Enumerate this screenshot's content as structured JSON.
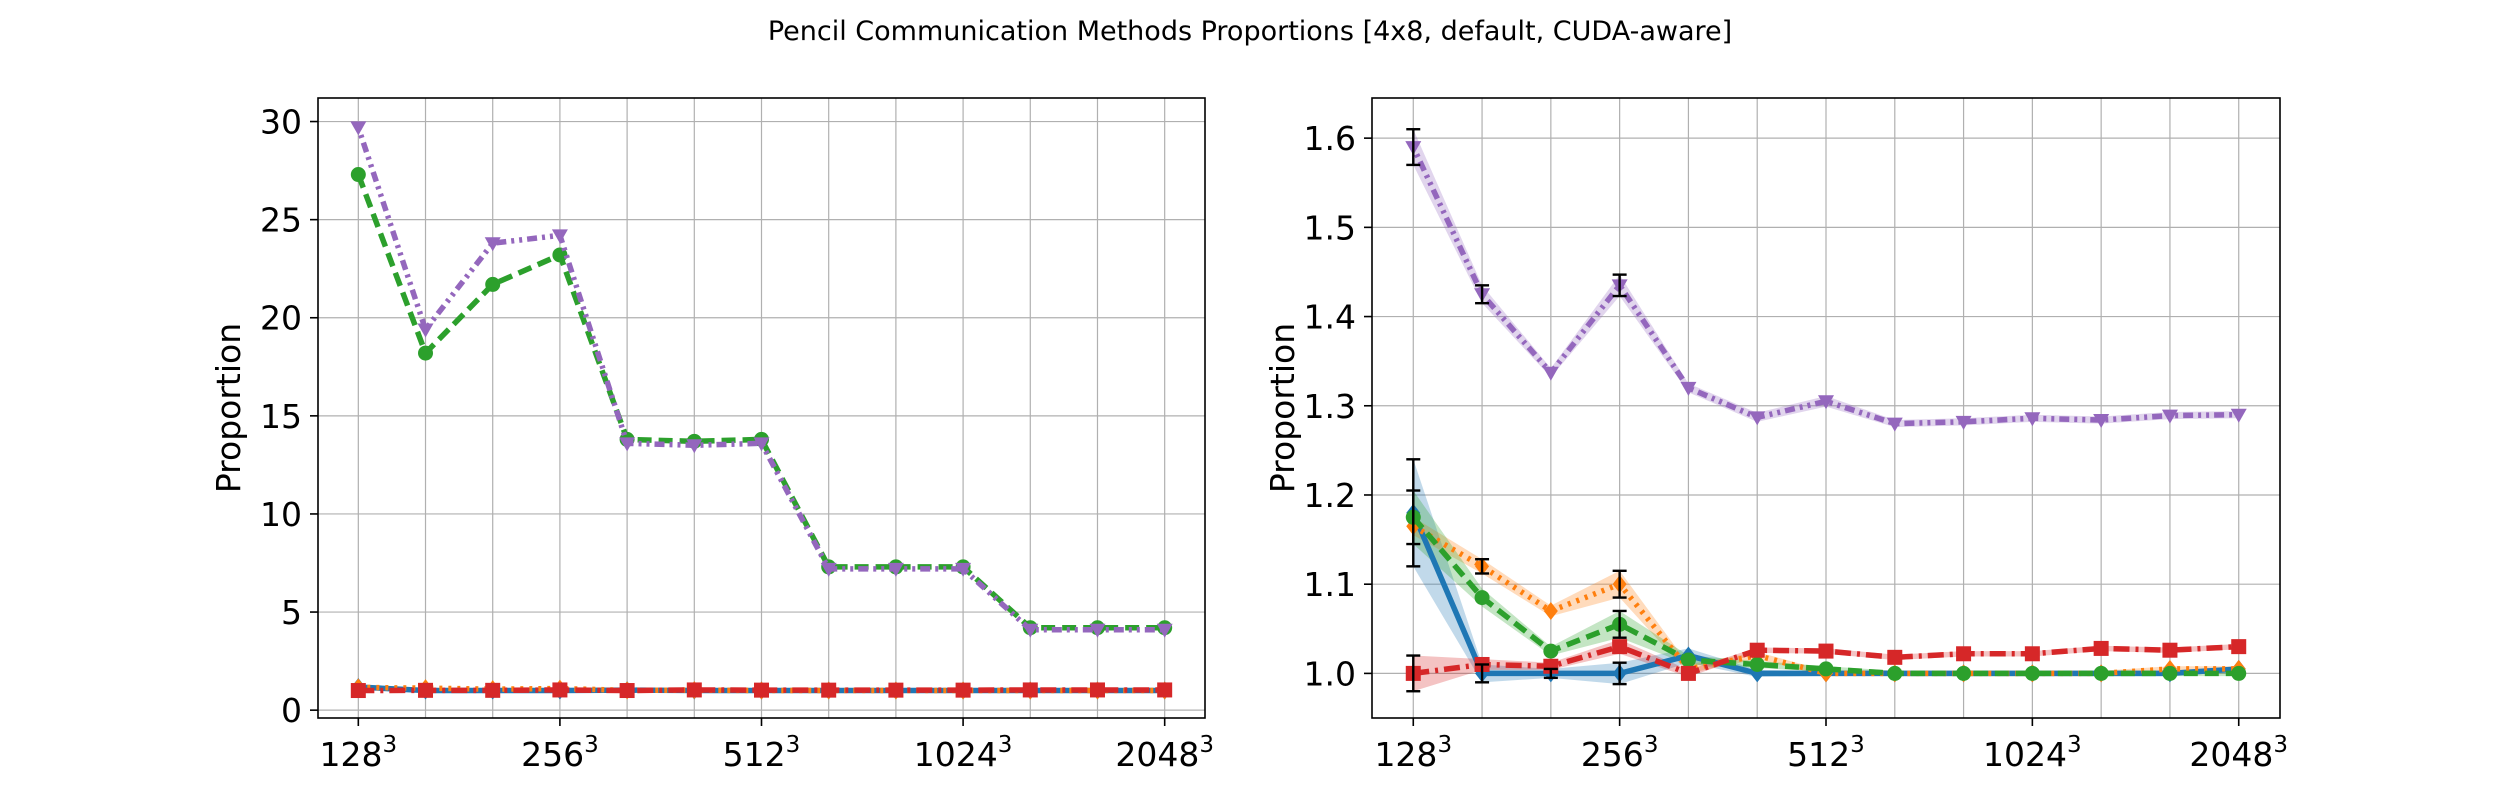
{
  "figure": {
    "title": "Pencil Communication Methods Proportions [4x8, default, CUDA-aware]"
  },
  "colors": {
    "blue": "#1f77b4",
    "orange": "#ff7f0e",
    "green": "#2ca02c",
    "red": "#d62728",
    "purple": "#9467bd"
  },
  "chart_data": [
    {
      "type": "line",
      "ylabel": "Proportion",
      "xlabel": "",
      "x_index": [
        0,
        1,
        2,
        3,
        4,
        5,
        6,
        7,
        8,
        9,
        10,
        11,
        12
      ],
      "xticks": [
        {
          "at": 0,
          "base": "128",
          "exp": "3"
        },
        {
          "at": 3,
          "base": "256",
          "exp": "3"
        },
        {
          "at": 6,
          "base": "512",
          "exp": "3"
        },
        {
          "at": 9,
          "base": "1024",
          "exp": "3"
        },
        {
          "at": 12,
          "base": "2048",
          "exp": "3"
        }
      ],
      "yticks": [
        0,
        5,
        10,
        15,
        20,
        25,
        30
      ],
      "xlim": [
        -0.6,
        12.6
      ],
      "ylim": [
        -0.4,
        31.2
      ],
      "grid": true,
      "series": [
        {
          "color": "blue",
          "marker": "diamond",
          "dash": "solid",
          "values": [
            1.18,
            1.0,
            1.0,
            1.0,
            1.02,
            1.0,
            1.0,
            1.0,
            1.0,
            1.0,
            1.0,
            1.0,
            1.0
          ]
        },
        {
          "color": "orange",
          "marker": "diamond",
          "dash": "dot",
          "values": [
            1.16,
            1.12,
            1.07,
            1.1,
            1.01,
            1.02,
            1.0,
            1.0,
            1.0,
            1.0,
            1.0,
            1.0,
            1.0
          ]
        },
        {
          "color": "green",
          "marker": "circle",
          "dash": "dash",
          "values": [
            27.3,
            18.2,
            21.7,
            23.2,
            13.8,
            13.7,
            13.8,
            7.3,
            7.3,
            7.3,
            4.2,
            4.2,
            4.2
          ]
        },
        {
          "color": "red",
          "marker": "square",
          "dash": "dashdot",
          "values": [
            1.0,
            1.01,
            1.01,
            1.03,
            1.0,
            1.03,
            1.02,
            1.02,
            1.02,
            1.02,
            1.03,
            1.03,
            1.03
          ]
        },
        {
          "color": "purple",
          "marker": "tri_down",
          "dash": "dotdash",
          "values": [
            29.7,
            19.4,
            23.8,
            24.2,
            13.6,
            13.5,
            13.6,
            7.2,
            7.2,
            7.2,
            4.1,
            4.1,
            4.1
          ]
        }
      ]
    },
    {
      "type": "line",
      "ylabel": "Proportion",
      "xlabel": "",
      "x_index": [
        0,
        1,
        2,
        3,
        4,
        5,
        6,
        7,
        8,
        9,
        10,
        11,
        12
      ],
      "xticks": [
        {
          "at": 0,
          "base": "128",
          "exp": "3"
        },
        {
          "at": 3,
          "base": "256",
          "exp": "3"
        },
        {
          "at": 6,
          "base": "512",
          "exp": "3"
        },
        {
          "at": 9,
          "base": "1024",
          "exp": "3"
        },
        {
          "at": 12,
          "base": "2048",
          "exp": "3"
        }
      ],
      "yticks": [
        1.0,
        1.1,
        1.2,
        1.3,
        1.4,
        1.5,
        1.6
      ],
      "ytick_labels": [
        "1.0",
        "1.1",
        "1.2",
        "1.3",
        "1.4",
        "1.5",
        "1.6"
      ],
      "xlim": [
        -0.6,
        12.6
      ],
      "ylim": [
        0.95,
        1.645
      ],
      "grid": true,
      "series": [
        {
          "color": "blue",
          "marker": "diamond",
          "dash": "solid",
          "values": [
            1.18,
            1.0,
            1.0,
            1.0,
            1.02,
            1.0,
            1.0,
            1.0,
            1.0,
            1.0,
            1.0,
            1.0,
            1.005
          ],
          "band": [
            0.06,
            0.01,
            0.005,
            0.012,
            0.008,
            0.004,
            0.003,
            0.003,
            0.003,
            0.003,
            0.003,
            0.003,
            0.003
          ],
          "err": [
            0.06,
            0.01,
            0.005,
            0.012,
            0.0,
            0.0,
            0.0,
            0.0,
            0.0,
            0.0,
            0.0,
            0.0,
            0.0
          ]
        },
        {
          "color": "orange",
          "marker": "diamond",
          "dash": "dot",
          "values": [
            1.165,
            1.12,
            1.07,
            1.1,
            1.005,
            1.02,
            1.0,
            1.0,
            1.0,
            1.0,
            1.0,
            1.005,
            1.005
          ],
          "band": [
            0.01,
            0.008,
            0.006,
            0.015,
            0.005,
            0.004,
            0.003,
            0.003,
            0.003,
            0.003,
            0.003,
            0.003,
            0.003
          ],
          "err": [
            0.0,
            0.008,
            0.0,
            0.015,
            0.0,
            0.0,
            0.0,
            0.0,
            0.0,
            0.0,
            0.0,
            0.0,
            0.0
          ]
        },
        {
          "color": "green",
          "marker": "circle",
          "dash": "dash",
          "values": [
            1.175,
            1.085,
            1.025,
            1.055,
            1.015,
            1.01,
            1.005,
            1.0,
            1.0,
            1.0,
            1.0,
            1.0,
            1.0
          ],
          "band": [
            0.03,
            0.01,
            0.005,
            0.015,
            0.005,
            0.004,
            0.003,
            0.003,
            0.003,
            0.003,
            0.003,
            0.003,
            0.003
          ],
          "err": [
            0.03,
            0.0,
            0.0,
            0.015,
            0.0,
            0.0,
            0.0,
            0.0,
            0.0,
            0.0,
            0.0,
            0.0,
            0.0
          ]
        },
        {
          "color": "red",
          "marker": "square",
          "dash": "dashdot",
          "values": [
            1.0,
            1.01,
            1.008,
            1.03,
            1.0,
            1.026,
            1.025,
            1.018,
            1.022,
            1.022,
            1.028,
            1.026,
            1.03
          ],
          "band": [
            0.02,
            0.006,
            0.004,
            0.008,
            0.004,
            0.003,
            0.003,
            0.003,
            0.003,
            0.003,
            0.003,
            0.003,
            0.003
          ],
          "err": [
            0.02,
            0.0,
            0.0,
            0.0,
            0.0,
            0.0,
            0.0,
            0.0,
            0.0,
            0.0,
            0.0,
            0.0,
            0.0
          ]
        },
        {
          "color": "purple",
          "marker": "tri_down",
          "dash": "dotdash",
          "values": [
            1.59,
            1.425,
            1.337,
            1.435,
            1.32,
            1.287,
            1.305,
            1.28,
            1.282,
            1.286,
            1.284,
            1.289,
            1.29
          ],
          "band": [
            0.02,
            0.01,
            0.005,
            0.012,
            0.005,
            0.005,
            0.006,
            0.004,
            0.004,
            0.004,
            0.004,
            0.004,
            0.004
          ],
          "err": [
            0.02,
            0.01,
            0.0,
            0.012,
            0.0,
            0.0,
            0.0,
            0.0,
            0.0,
            0.0,
            0.0,
            0.0,
            0.0
          ]
        }
      ]
    }
  ]
}
